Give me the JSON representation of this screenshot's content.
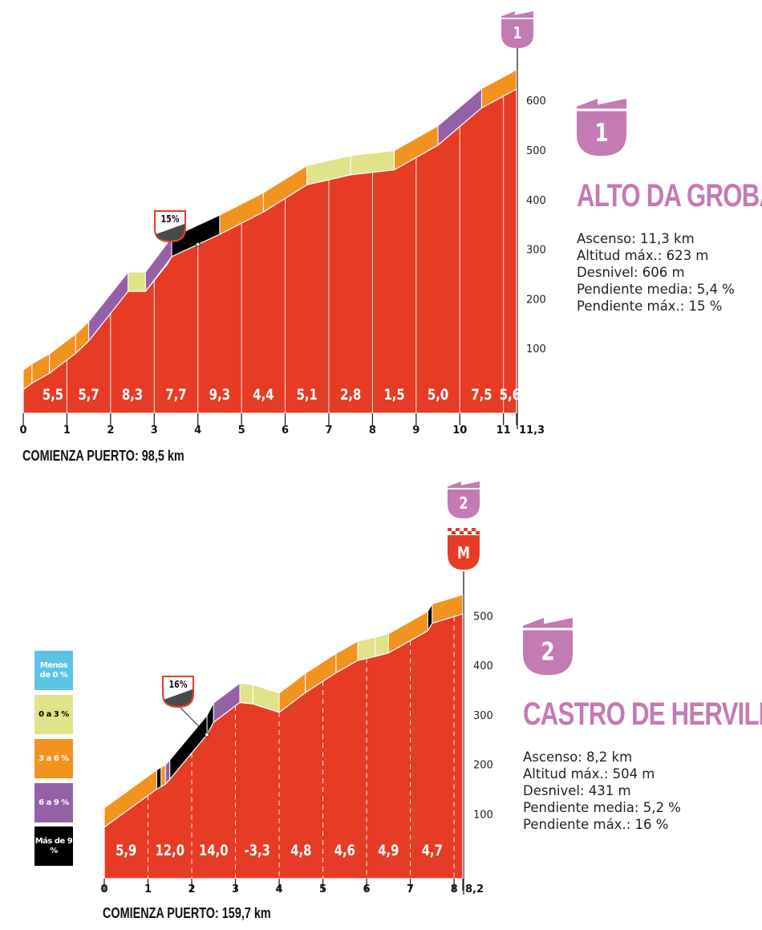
{
  "colors": {
    "profile_fill": "#e63c26",
    "lt0": "#5bc4e4",
    "g0_3": "#e1e38a",
    "g3_6": "#f3931f",
    "g6_9": "#9461a6",
    "gt9": "#000000",
    "badge": "#c47ab2"
  },
  "legend": [
    {
      "label": "Menos de 0 %",
      "color_key": "lt0"
    },
    {
      "label": "0 a 3 %",
      "color_key": "g0_3"
    },
    {
      "label": "3 a 6 %",
      "color_key": "g3_6"
    },
    {
      "label": "6 a 9 %",
      "color_key": "g6_9"
    },
    {
      "label": "Más de 9 %",
      "color_key": "gt9"
    }
  ],
  "climbs": [
    {
      "badge_number": "1",
      "name": "ALTO DA GROBA",
      "stats": [
        "Ascenso: 11,3 km",
        "Altitud máx.: 623 m",
        "Desnivel: 606 m",
        "Pendiente media: 5,4 %",
        "Pendiente máx.: 15 %"
      ],
      "start_label": "COMIENZA PUERTO: 98,5 km",
      "max_grade_tag": "15%"
    },
    {
      "badge_number": "2",
      "name": "CASTRO DE HERVILLE",
      "stats": [
        "Ascenso: 8,2 km",
        "Altitud máx.: 504 m",
        "Desnivel: 431 m",
        "Pendiente media: 5,2 %",
        "Pendiente máx.: 16 %"
      ],
      "start_label": "COMIENZA PUERTO: 159,7 km",
      "max_grade_tag": "16%",
      "finish_badge": "M"
    }
  ],
  "chart_data": [
    {
      "type": "area",
      "title": "ALTO DA GROBA",
      "xlabel": "km",
      "ylabel": "m",
      "xlim": [
        0,
        11.3
      ],
      "ylim": [
        0,
        650
      ],
      "x_ticks": [
        "0",
        "1",
        "2",
        "3",
        "4",
        "5",
        "6",
        "7",
        "8",
        "9",
        "10",
        "11",
        "11,3"
      ],
      "x_tick_values": [
        0,
        1,
        2,
        3,
        4,
        5,
        6,
        7,
        8,
        9,
        10,
        11,
        11.3
      ],
      "y_ticks": [
        100,
        200,
        300,
        400,
        500,
        600
      ],
      "km_gradients": [
        "5,5",
        "5,7",
        "8,3",
        "7,7",
        "9,3",
        "4,4",
        "5,1",
        "2,8",
        "1,5",
        "5,0",
        "7,5",
        "5,6"
      ],
      "profile": [
        [
          0,
          17
        ],
        [
          0.2,
          30
        ],
        [
          0.6,
          50
        ],
        [
          1.2,
          90
        ],
        [
          1.5,
          115
        ],
        [
          2.4,
          215
        ],
        [
          2.8,
          215
        ],
        [
          3.3,
          270
        ],
        [
          3.4,
          285
        ],
        [
          4.5,
          330
        ],
        [
          5.5,
          375
        ],
        [
          6.5,
          430
        ],
        [
          7.5,
          450
        ],
        [
          8.5,
          460
        ],
        [
          9.5,
          510
        ],
        [
          10.5,
          585
        ],
        [
          11.3,
          623
        ]
      ],
      "segments": [
        {
          "from": 0,
          "to": 0.2,
          "grade": "g3_6"
        },
        {
          "from": 0.2,
          "to": 0.6,
          "grade": "g3_6"
        },
        {
          "from": 0.6,
          "to": 1.2,
          "grade": "g3_6"
        },
        {
          "from": 1.2,
          "to": 1.5,
          "grade": "g3_6"
        },
        {
          "from": 1.5,
          "to": 2.4,
          "grade": "g6_9"
        },
        {
          "from": 2.4,
          "to": 2.8,
          "grade": "g0_3"
        },
        {
          "from": 2.8,
          "to": 3.4,
          "grade": "g6_9"
        },
        {
          "from": 3.4,
          "to": 4.5,
          "grade": "gt9"
        },
        {
          "from": 4.5,
          "to": 5.5,
          "grade": "g3_6"
        },
        {
          "from": 5.5,
          "to": 6.5,
          "grade": "g3_6"
        },
        {
          "from": 6.5,
          "to": 7.5,
          "grade": "g0_3"
        },
        {
          "from": 7.5,
          "to": 8.5,
          "grade": "g0_3"
        },
        {
          "from": 8.5,
          "to": 9.5,
          "grade": "g3_6"
        },
        {
          "from": 9.5,
          "to": 10.5,
          "grade": "g6_9"
        },
        {
          "from": 10.5,
          "to": 11.3,
          "grade": "g3_6"
        }
      ],
      "max_grade_at_km": 4.0
    },
    {
      "type": "area",
      "title": "CASTRO DE HERVILLE",
      "xlabel": "km",
      "ylabel": "m",
      "xlim": [
        0,
        8.2
      ],
      "ylim": [
        0,
        540
      ],
      "x_ticks": [
        "0",
        "1",
        "2",
        "3",
        "4",
        "5",
        "6",
        "7",
        "8",
        "8,2"
      ],
      "x_tick_values": [
        0,
        1,
        2,
        3,
        4,
        5,
        6,
        7,
        8,
        8.2
      ],
      "y_ticks": [
        100,
        200,
        300,
        400,
        500
      ],
      "km_gradients": [
        "5,9",
        "12,0",
        "14,0",
        "-3,3",
        "4,8",
        "4,6",
        "4,9",
        "4,7"
      ],
      "profile": [
        [
          0,
          73
        ],
        [
          1.2,
          150
        ],
        [
          1.4,
          160
        ],
        [
          1.5,
          170
        ],
        [
          2.35,
          260
        ],
        [
          2.5,
          285
        ],
        [
          3.1,
          325
        ],
        [
          3.4,
          322
        ],
        [
          4.0,
          305
        ],
        [
          4.6,
          345
        ],
        [
          5.3,
          385
        ],
        [
          5.8,
          410
        ],
        [
          6.2,
          418
        ],
        [
          6.5,
          425
        ],
        [
          7.4,
          470
        ],
        [
          7.5,
          485
        ],
        [
          8.2,
          504
        ]
      ],
      "segments": [
        {
          "from": 0,
          "to": 1.2,
          "grade": "g3_6"
        },
        {
          "from": 1.2,
          "to": 1.3,
          "grade": "gt9"
        },
        {
          "from": 1.3,
          "to": 1.4,
          "grade": "g3_6"
        },
        {
          "from": 1.4,
          "to": 1.5,
          "grade": "g6_9"
        },
        {
          "from": 1.5,
          "to": 2.35,
          "grade": "gt9"
        },
        {
          "from": 2.35,
          "to": 2.5,
          "grade": "gt9"
        },
        {
          "from": 2.5,
          "to": 3.1,
          "grade": "g6_9"
        },
        {
          "from": 3.1,
          "to": 3.4,
          "grade": "g0_3"
        },
        {
          "from": 3.4,
          "to": 4.0,
          "grade": "g0_3"
        },
        {
          "from": 4.0,
          "to": 4.6,
          "grade": "g3_6"
        },
        {
          "from": 4.6,
          "to": 5.3,
          "grade": "g3_6"
        },
        {
          "from": 5.3,
          "to": 5.8,
          "grade": "g3_6"
        },
        {
          "from": 5.8,
          "to": 6.2,
          "grade": "g0_3"
        },
        {
          "from": 6.2,
          "to": 6.5,
          "grade": "g0_3"
        },
        {
          "from": 6.5,
          "to": 7.4,
          "grade": "g3_6"
        },
        {
          "from": 7.4,
          "to": 7.5,
          "grade": "gt9"
        },
        {
          "from": 7.5,
          "to": 8.2,
          "grade": "g3_6"
        }
      ],
      "max_grade_at_km": 2.35
    }
  ]
}
